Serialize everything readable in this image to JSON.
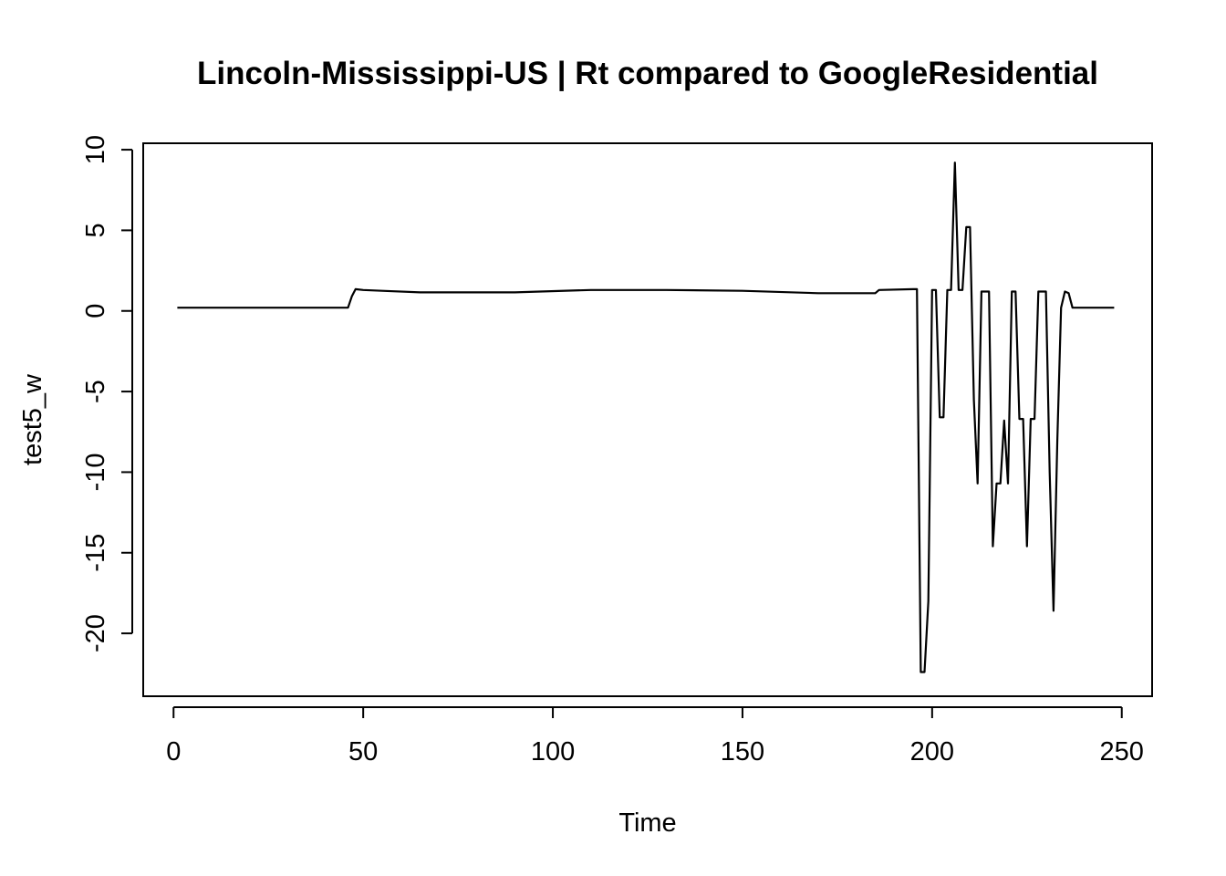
{
  "chart_data": {
    "type": "line",
    "title": "Lincoln-Mississippi-US | Rt compared to GoogleResidential",
    "xlabel": "Time",
    "ylabel": "test5_w",
    "xlim": [
      -8,
      258
    ],
    "ylim": [
      -23.9,
      10.4
    ],
    "xticks": [
      0,
      50,
      100,
      150,
      200,
      250
    ],
    "yticks": [
      10,
      5,
      0,
      -5,
      -10,
      -15,
      -20
    ],
    "grid": false,
    "legend": "none",
    "series": [
      {
        "x": [
          1,
          46,
          47,
          48,
          50,
          55,
          65,
          90,
          110,
          130,
          150,
          170,
          185,
          186,
          195,
          196,
          197,
          198,
          199,
          200,
          201,
          202,
          203,
          204,
          205,
          206,
          207,
          208,
          209,
          210,
          211,
          212,
          213,
          214,
          215,
          216,
          217,
          218,
          219,
          220,
          221,
          222,
          223,
          224,
          225,
          226,
          227,
          228,
          229,
          230,
          231,
          232,
          233,
          234,
          235,
          236,
          237,
          248
        ],
        "values": [
          0.2,
          0.2,
          0.9,
          1.35,
          1.3,
          1.25,
          1.15,
          1.15,
          1.3,
          1.3,
          1.25,
          1.1,
          1.1,
          1.3,
          1.35,
          1.35,
          -22.4,
          -22.4,
          -18.0,
          1.3,
          1.3,
          -6.6,
          -6.6,
          1.3,
          1.3,
          9.2,
          1.3,
          1.3,
          5.2,
          5.2,
          -5.5,
          -10.7,
          1.2,
          1.2,
          1.2,
          -14.6,
          -10.7,
          -10.7,
          -6.8,
          -10.7,
          1.2,
          1.2,
          -6.7,
          -6.7,
          -14.6,
          -6.7,
          -6.7,
          1.2,
          1.2,
          1.2,
          -10.0,
          -18.6,
          -8.0,
          0.2,
          1.2,
          1.1,
          0.2,
          0.2
        ]
      }
    ]
  }
}
